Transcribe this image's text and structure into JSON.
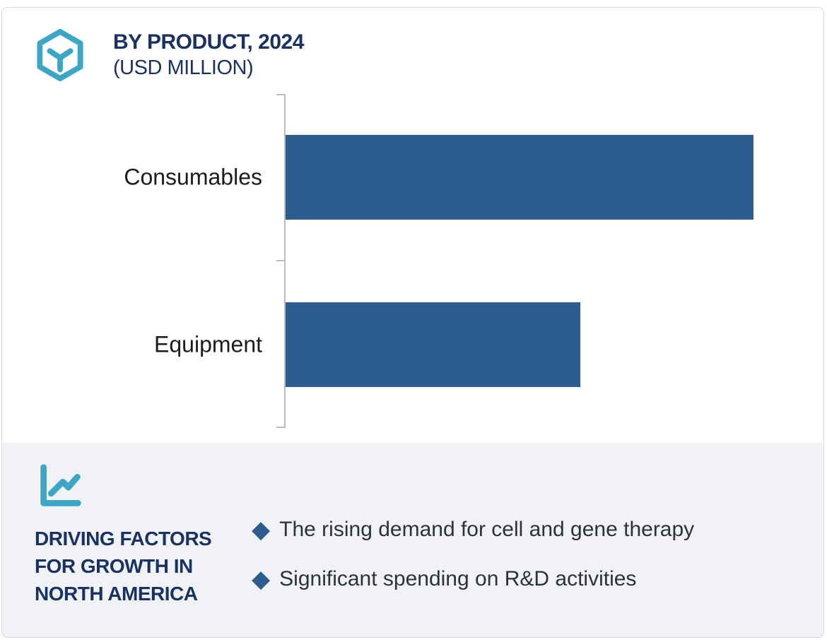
{
  "header": {
    "title_line1": "BY PRODUCT, 2024",
    "title_line2": "(USD MILLION)",
    "logo_icon": "hexagon-cube-icon"
  },
  "chart_data": {
    "type": "bar",
    "orientation": "horizontal",
    "title": "BY PRODUCT, 2024 (USD MILLION)",
    "categories": [
      "Consumables",
      "Equipment"
    ],
    "values": [
      100,
      63
    ],
    "value_note": "axis unlabeled in image; values are relative bar lengths (% of longest bar)",
    "xlabel": "",
    "ylabel": "",
    "legend": "none",
    "grid": "off",
    "bar_color": "#2d5c8e",
    "axis_color": "#bdbdbd"
  },
  "footer": {
    "icon": "line-chart-icon",
    "heading": "DRIVING FACTORS FOR GROWTH IN NORTH AMERICA",
    "bullet_marker": "◆",
    "bullets": [
      "The rising demand for cell and gene therapy",
      "Significant spending on R&D activities"
    ],
    "background_color": "#f0f2f6"
  },
  "colors": {
    "accent_teal": "#3ba7c5",
    "navy": "#1a3263",
    "bar_blue": "#2d5c8e"
  }
}
